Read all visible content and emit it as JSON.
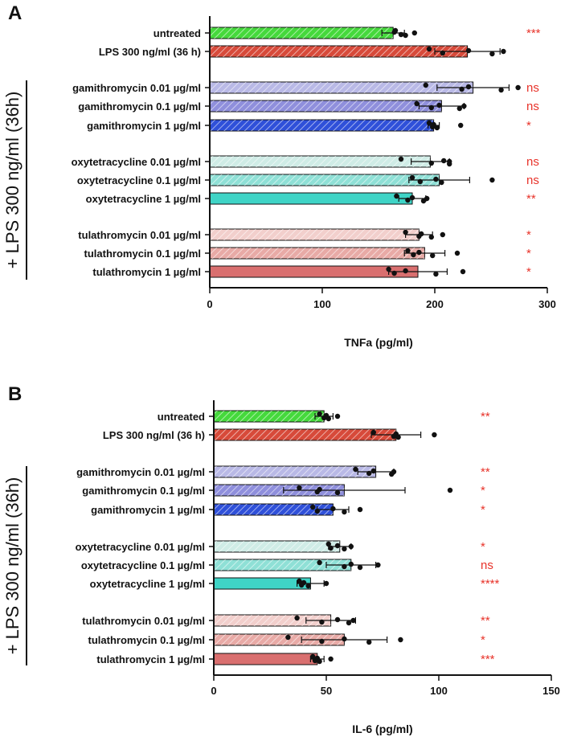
{
  "group_label": "+ LPS 300 ng/ml (36h)",
  "panels": [
    {
      "panel_label": "A",
      "chart_data": {
        "type": "bar",
        "orientation": "horizontal",
        "xlabel": "TNFa (pg/ml)",
        "xlim": [
          0,
          300
        ],
        "xticks": [
          0,
          100,
          200,
          300
        ],
        "categories": [
          "untreated",
          "LPS 300 ng/ml (36 h)",
          "gamithromycin 0.01 µg/ml",
          "gamithromycin 0.1 µg/ml",
          "gamithromycin 1 µg/ml",
          "oxytetracycline 0.01 µg/ml",
          "oxytetracycline 0.1 µg/ml",
          "oxytetracycline 1 µg/ml",
          "tulathromycin 0.01 µg/ml",
          "tulathromycin 0.1 µg/ml",
          "tulathromycin 1 µg/ml"
        ],
        "values": [
          163,
          229,
          234,
          206,
          199,
          196,
          204,
          180,
          186,
          191,
          185
        ],
        "errors": [
          10,
          29,
          32,
          20,
          5,
          17,
          27,
          12,
          12,
          18,
          26
        ],
        "points": [
          [
            165,
            170,
            164,
            174,
            182
          ],
          [
            195,
            207,
            230,
            251,
            261
          ],
          [
            192,
            224,
            230,
            259,
            274
          ],
          [
            184,
            197,
            204,
            222,
            226
          ],
          [
            195,
            198,
            199,
            202,
            223
          ],
          [
            170,
            197,
            208,
            213,
            213
          ],
          [
            180,
            187,
            201,
            206,
            251
          ],
          [
            166,
            176,
            180,
            190,
            193
          ],
          [
            174,
            186,
            188,
            197,
            207
          ],
          [
            176,
            181,
            186,
            198,
            220
          ],
          [
            159,
            164,
            174,
            201,
            225
          ]
        ],
        "significance": [
          "***",
          "",
          "ns",
          "ns",
          "*",
          "ns",
          "ns",
          "**",
          "*",
          "*",
          "*"
        ],
        "colors": [
          "#45d93c",
          "#d74a3a",
          "#b9b9e6",
          "#8f8fdc",
          "#2f50d9",
          "#cfece6",
          "#8fe0d6",
          "#3fd4c6",
          "#f2cfcc",
          "#e8aaa6",
          "#d96f6f"
        ],
        "hatched": [
          true,
          true,
          true,
          true,
          true,
          true,
          true,
          false,
          true,
          true,
          false
        ]
      }
    },
    {
      "panel_label": "B",
      "chart_data": {
        "type": "bar",
        "orientation": "horizontal",
        "xlabel": "IL-6 (pg/ml)",
        "xlim": [
          0,
          150
        ],
        "xticks": [
          0,
          50,
          100,
          150
        ],
        "categories": [
          "untreated",
          "LPS 300 ng/ml (36 h)",
          "gamithromycin 0.01 µg/ml",
          "gamithromycin 0.1 µg/ml",
          "gamithromycin 1 µg/ml",
          "oxytetracycline 0.01 µg/ml",
          "oxytetracycline 0.1 µg/ml",
          "oxytetracycline 1 µg/ml",
          "tulathromycin 0.01 µg/ml",
          "tulathromycin 0.1 µg/ml",
          "tulathromycin 1 µg/ml"
        ],
        "values": [
          49,
          81,
          72,
          58,
          53,
          56,
          61,
          43,
          52,
          58,
          46
        ],
        "errors": [
          4,
          11,
          8,
          27,
          7,
          5,
          11,
          6,
          11,
          19,
          3
        ],
        "points": [
          [
            47,
            49,
            50,
            51,
            55
          ],
          [
            71,
            80,
            81,
            82,
            98
          ],
          [
            63,
            69,
            71,
            79,
            80
          ],
          [
            38,
            46,
            47,
            55,
            105
          ],
          [
            44,
            46,
            53,
            58,
            65
          ],
          [
            51,
            52,
            55,
            58,
            61
          ],
          [
            47,
            58,
            61,
            65,
            73
          ],
          [
            38,
            39,
            40,
            42,
            50
          ],
          [
            37,
            48,
            55,
            60,
            62
          ],
          [
            33,
            48,
            58,
            69,
            83
          ],
          [
            44,
            45,
            46,
            47,
            52
          ]
        ],
        "significance": [
          "**",
          "",
          "**",
          "*",
          "*",
          "*",
          "ns",
          "****",
          "**",
          "*",
          "***"
        ],
        "colors": [
          "#45d93c",
          "#d74a3a",
          "#b9b9e6",
          "#8f8fdc",
          "#2f50d9",
          "#cfece6",
          "#8fe0d6",
          "#3fd4c6",
          "#f2cfcc",
          "#e8aaa6",
          "#d96f6f"
        ],
        "hatched": [
          true,
          true,
          true,
          true,
          true,
          true,
          true,
          false,
          true,
          true,
          false
        ]
      }
    }
  ]
}
